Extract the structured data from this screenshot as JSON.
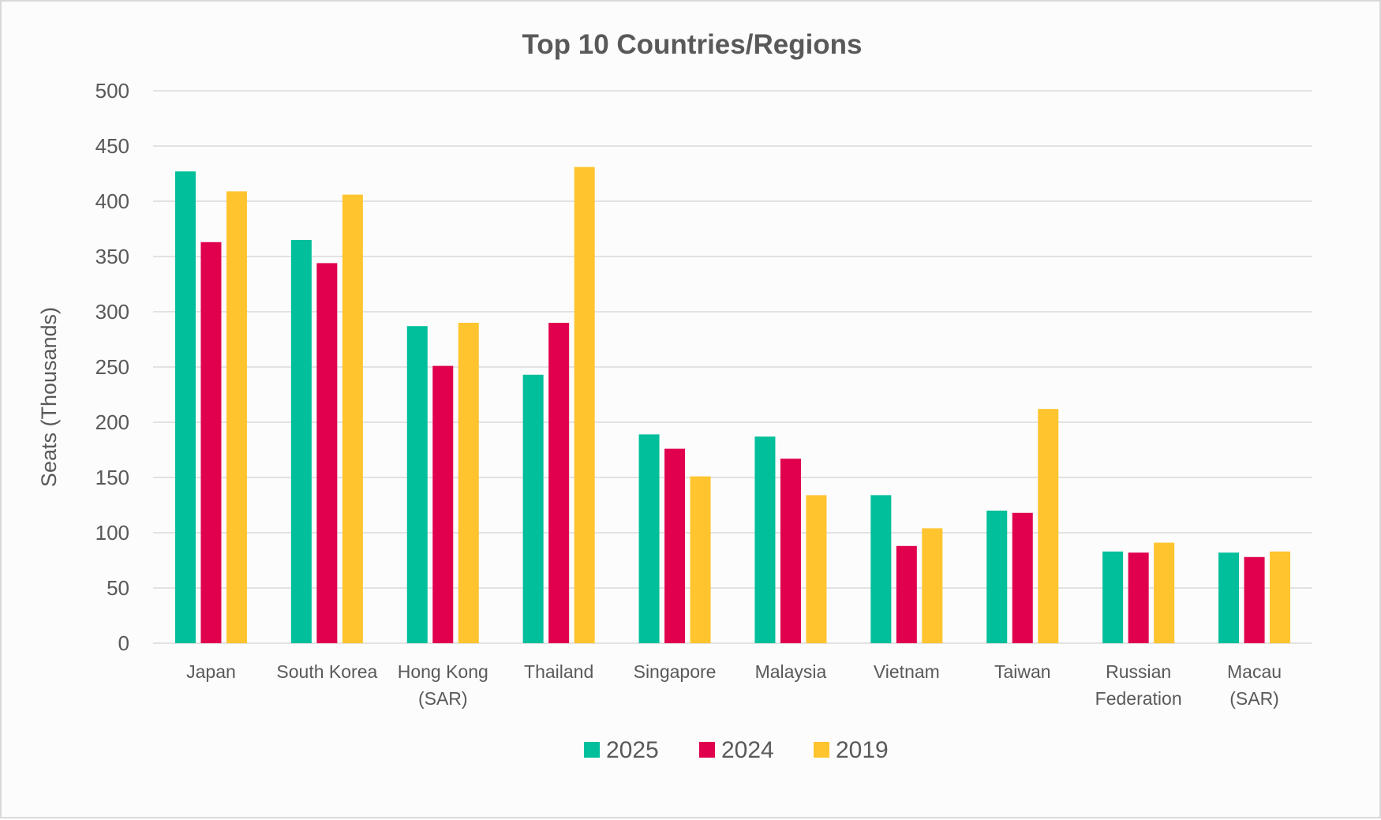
{
  "chart_data": {
    "type": "bar",
    "title": "Top 10 Countries/Regions",
    "xlabel": "",
    "ylabel": "Seats (Thousands)",
    "ylim": [
      0,
      500
    ],
    "yticks": [
      0,
      50,
      100,
      150,
      200,
      250,
      300,
      350,
      400,
      450,
      500
    ],
    "grid": true,
    "legend_position": "bottom",
    "categories": [
      [
        "Japan"
      ],
      [
        "South Korea"
      ],
      [
        "Hong Kong",
        "(SAR)"
      ],
      [
        "Thailand"
      ],
      [
        "Singapore"
      ],
      [
        "Malaysia"
      ],
      [
        "Vietnam"
      ],
      [
        "Taiwan"
      ],
      [
        "Russian",
        "Federation"
      ],
      [
        "Macau",
        "(SAR)"
      ]
    ],
    "series": [
      {
        "name": "2025",
        "color": "#00bf9a",
        "values": [
          427,
          365,
          287,
          243,
          189,
          187,
          134,
          120,
          83,
          82
        ]
      },
      {
        "name": "2024",
        "color": "#e0004d",
        "values": [
          363,
          344,
          251,
          290,
          176,
          167,
          88,
          118,
          82,
          78
        ]
      },
      {
        "name": "2019",
        "color": "#ffc42e",
        "values": [
          409,
          406,
          290,
          431,
          151,
          134,
          104,
          212,
          91,
          83
        ]
      }
    ]
  }
}
